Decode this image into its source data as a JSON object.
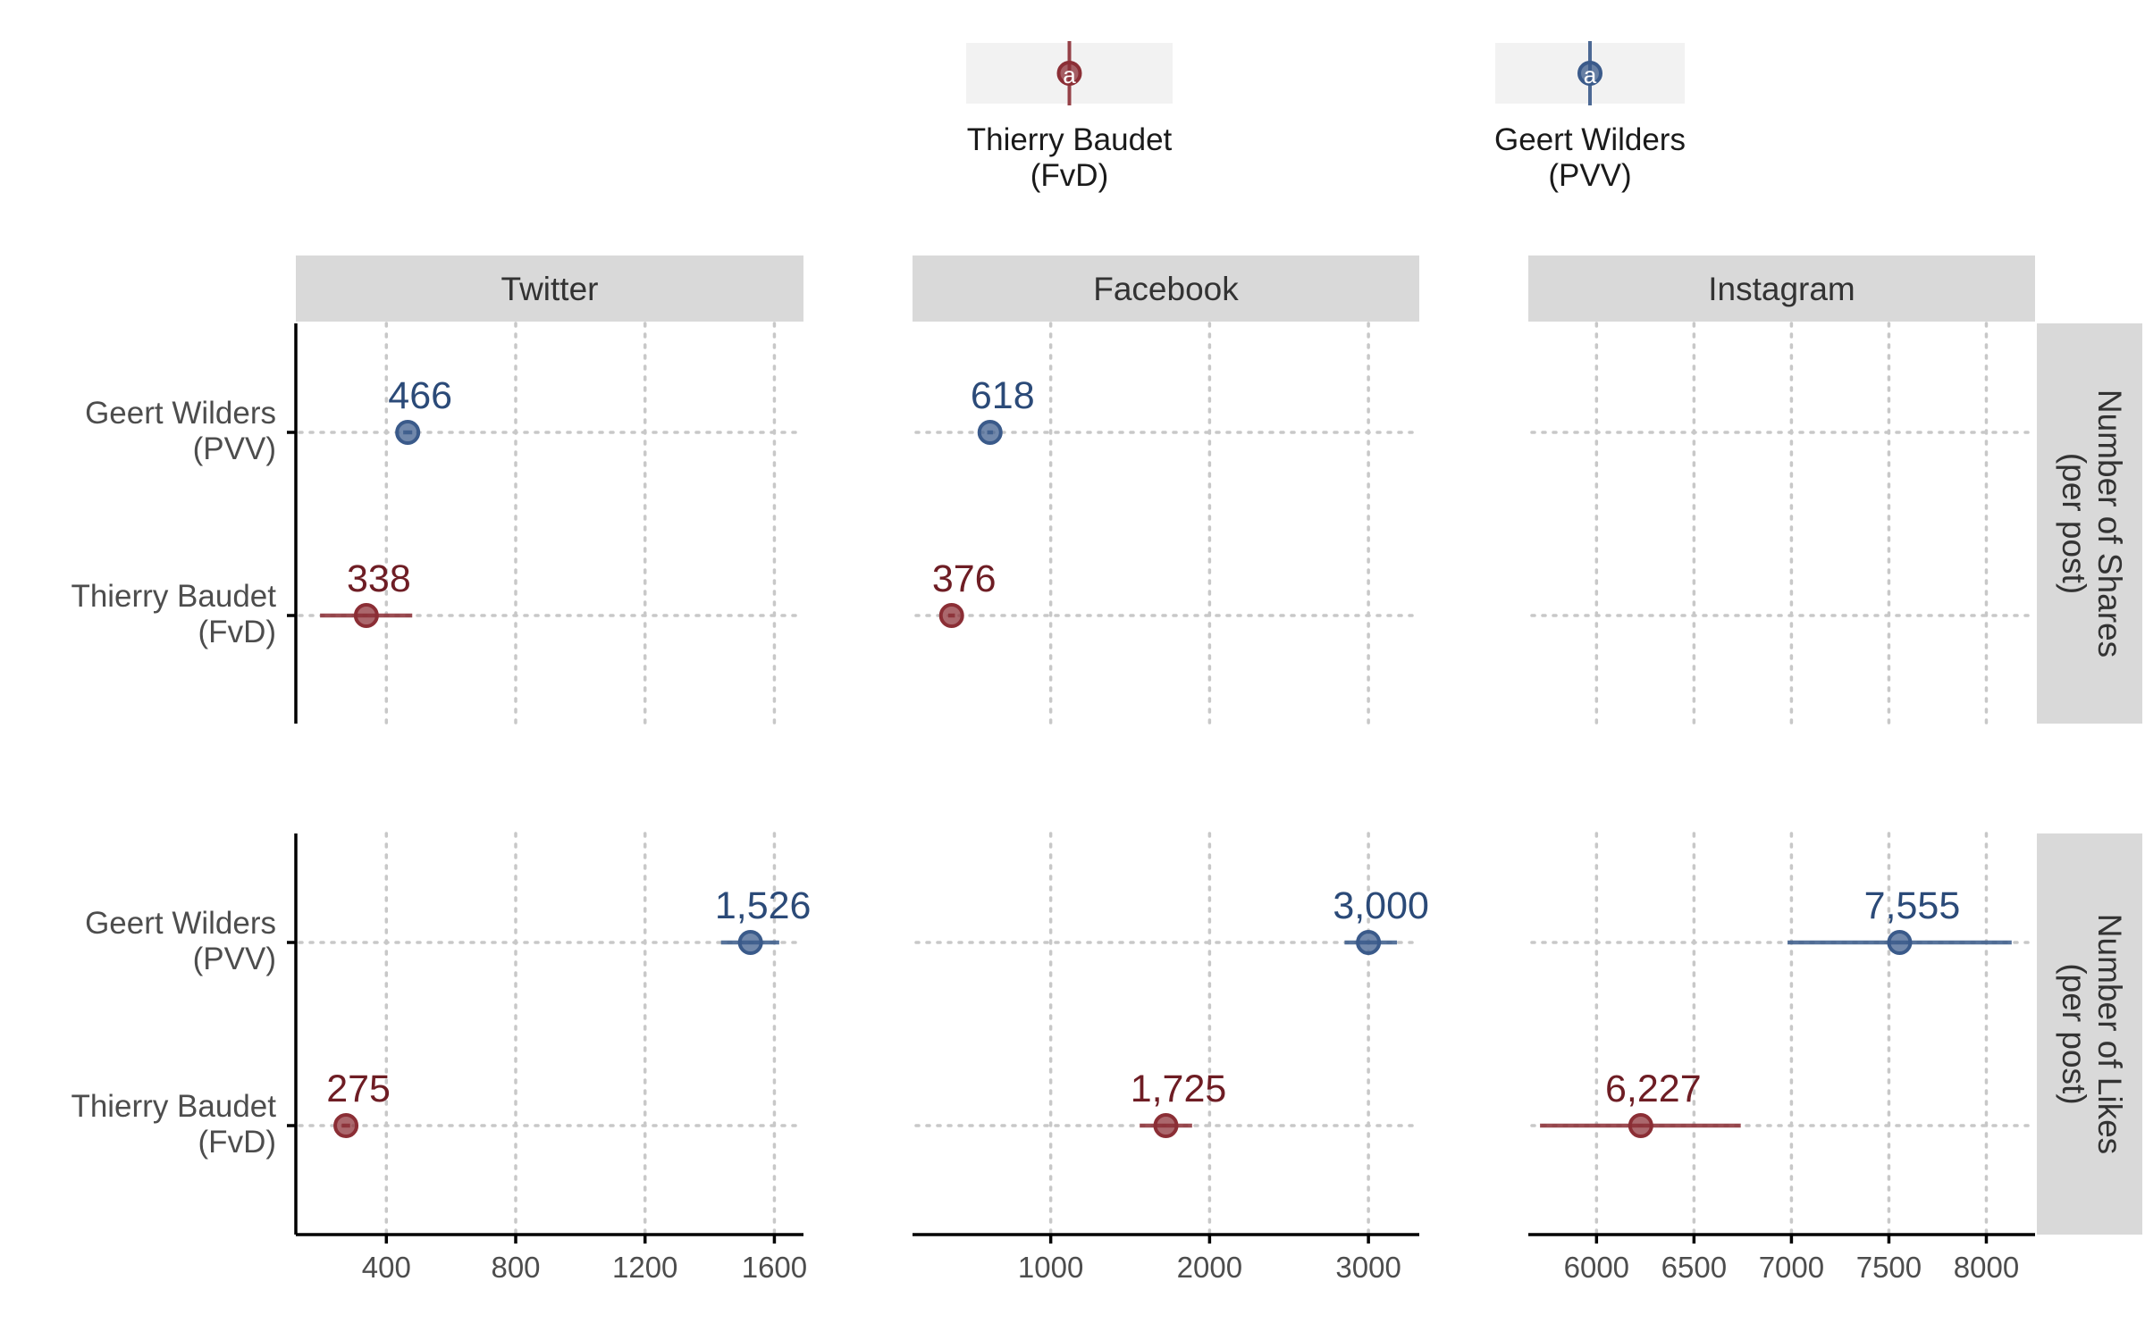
{
  "chart_data": {
    "type": "dot-errorbar",
    "legend": {
      "placement": "top",
      "items": [
        {
          "key": "fvd",
          "label_line1": "Thierry Baudet",
          "label_line2": "(FvD)",
          "color": "#8b2e35",
          "text_color": "#6e1d24"
        },
        {
          "key": "pvv",
          "label_line1": "Geert Wilders",
          "label_line2": "(PVV)",
          "color": "#3a5a8a",
          "text_color": "#2b4a78"
        }
      ]
    },
    "categories": [
      {
        "key": "pvv",
        "line1": "Geert Wilders",
        "line2": "(PVV)"
      },
      {
        "key": "fvd",
        "line1": "Thierry Baudet",
        "line2": "(FvD)"
      }
    ],
    "column_facets": [
      {
        "key": "twitter",
        "label": "Twitter",
        "xlim": [
          120,
          1690
        ],
        "ticks": [
          400,
          800,
          1200,
          1600
        ],
        "tick_labels": [
          "400",
          "800",
          "1200",
          "1600"
        ]
      },
      {
        "key": "facebook",
        "label": "Facebook",
        "xlim": [
          130,
          3320
        ],
        "ticks": [
          1000,
          2000,
          3000
        ],
        "tick_labels": [
          "1000",
          "2000",
          "3000"
        ]
      },
      {
        "key": "instagram",
        "label": "Instagram",
        "xlim": [
          5650,
          8250
        ],
        "ticks": [
          6000,
          6500,
          7000,
          7500,
          8000
        ],
        "tick_labels": [
          "6000",
          "6500",
          "7000",
          "7500",
          "8000"
        ]
      }
    ],
    "row_facets": [
      {
        "key": "shares",
        "label_line1": "Number of Shares",
        "label_line2": "(per post)"
      },
      {
        "key": "likes",
        "label_line1": "Number of Likes",
        "label_line2": "(per post)"
      }
    ],
    "points": [
      {
        "row": "shares",
        "col": "twitter",
        "party": "pvv",
        "value": 466,
        "label": "466",
        "lo": 452,
        "hi": 480
      },
      {
        "row": "shares",
        "col": "twitter",
        "party": "fvd",
        "value": 338,
        "label": "338",
        "lo": 195,
        "hi": 480
      },
      {
        "row": "shares",
        "col": "facebook",
        "party": "pvv",
        "value": 618,
        "label": "618",
        "lo": 600,
        "hi": 636
      },
      {
        "row": "shares",
        "col": "facebook",
        "party": "fvd",
        "value": 376,
        "label": "376",
        "lo": 355,
        "hi": 397
      },
      {
        "row": "likes",
        "col": "twitter",
        "party": "pvv",
        "value": 1526,
        "label": "1,526",
        "lo": 1435,
        "hi": 1615
      },
      {
        "row": "likes",
        "col": "twitter",
        "party": "fvd",
        "value": 275,
        "label": "275",
        "lo": 262,
        "hi": 288
      },
      {
        "row": "likes",
        "col": "facebook",
        "party": "pvv",
        "value": 3000,
        "label": "3,000",
        "lo": 2850,
        "hi": 3180
      },
      {
        "row": "likes",
        "col": "facebook",
        "party": "fvd",
        "value": 1725,
        "label": "1,725",
        "lo": 1560,
        "hi": 1890
      },
      {
        "row": "likes",
        "col": "instagram",
        "party": "pvv",
        "value": 7555,
        "label": "7,555",
        "lo": 6980,
        "hi": 8130
      },
      {
        "row": "likes",
        "col": "instagram",
        "party": "fvd",
        "value": 6227,
        "label": "6,227",
        "lo": 5710,
        "hi": 6740
      }
    ],
    "grid": true
  }
}
